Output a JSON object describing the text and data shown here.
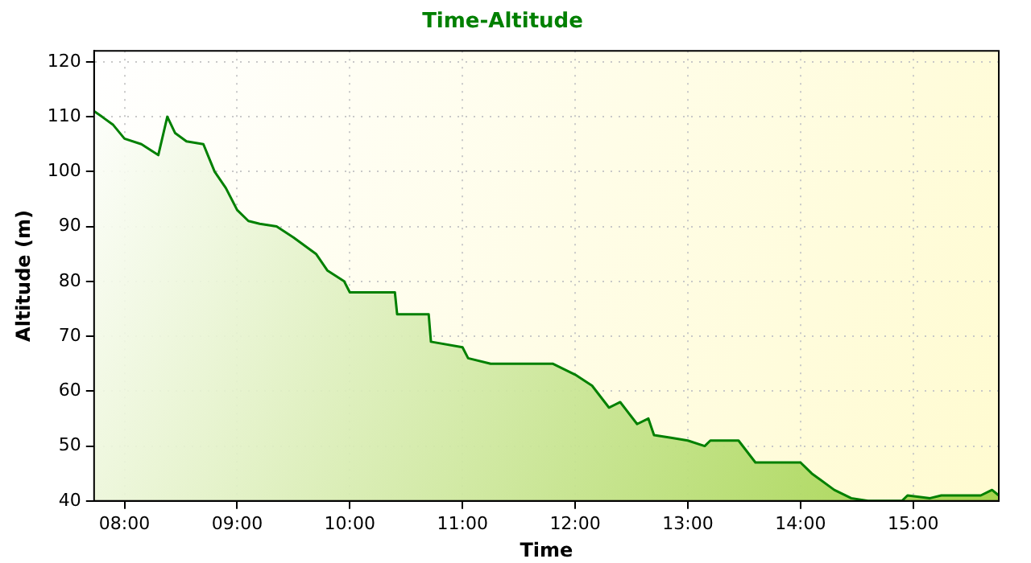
{
  "chart_data": {
    "type": "area",
    "title": "Time-Altitude",
    "xlabel": "Time",
    "ylabel": "Altitude (m)",
    "xlim": [
      7.73,
      15.76
    ],
    "ylim": [
      40,
      122
    ],
    "xticks": [
      {
        "value": 8,
        "label": "08:00"
      },
      {
        "value": 9,
        "label": "09:00"
      },
      {
        "value": 10,
        "label": "10:00"
      },
      {
        "value": 11,
        "label": "11:00"
      },
      {
        "value": 12,
        "label": "12:00"
      },
      {
        "value": 13,
        "label": "13:00"
      },
      {
        "value": 14,
        "label": "14:00"
      },
      {
        "value": 15,
        "label": "15:00"
      }
    ],
    "yticks": [
      40,
      50,
      60,
      70,
      80,
      90,
      100,
      110,
      120
    ],
    "grid": true,
    "legend": false,
    "x": [
      7.73,
      7.8,
      7.9,
      8.0,
      8.15,
      8.3,
      8.38,
      8.45,
      8.55,
      8.7,
      8.8,
      8.9,
      9.0,
      9.1,
      9.2,
      9.35,
      9.5,
      9.7,
      9.8,
      9.95,
      10.0,
      10.4,
      10.42,
      10.7,
      10.72,
      11.0,
      11.05,
      11.25,
      11.8,
      12.0,
      12.15,
      12.3,
      12.4,
      12.55,
      12.65,
      12.7,
      12.85,
      13.0,
      13.15,
      13.2,
      13.45,
      13.6,
      14.0,
      14.1,
      14.3,
      14.45,
      14.6,
      14.9,
      14.95,
      15.15,
      15.25,
      15.6,
      15.7,
      15.76
    ],
    "series": [
      {
        "type": "area",
        "color": "#008000",
        "values": [
          111,
          110,
          108.5,
          106,
          105,
          103,
          110,
          107,
          105.5,
          105,
          100,
          97,
          93,
          91,
          90.5,
          90,
          88,
          85,
          82,
          80,
          78,
          78,
          74,
          74,
          69,
          68,
          66,
          65,
          65,
          63,
          61,
          57,
          58,
          54,
          55,
          52,
          51.5,
          51,
          50,
          51,
          51,
          47,
          47,
          45,
          42,
          40.5,
          40,
          40,
          41,
          40.5,
          41,
          41,
          42,
          41
        ]
      }
    ]
  }
}
